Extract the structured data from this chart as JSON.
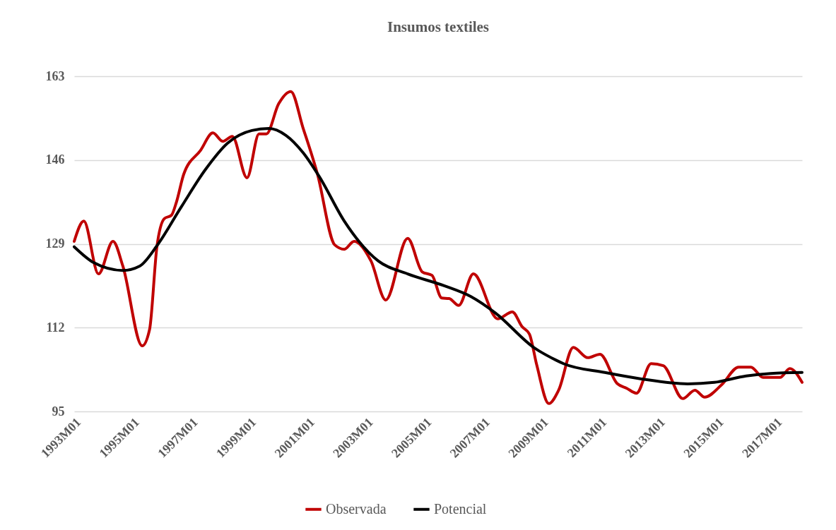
{
  "chart_data": {
    "type": "line",
    "title": "Insumos textiles",
    "legend": "bottom",
    "grid": "y",
    "marker": "none",
    "line_style": "solid",
    "xlim": [
      "1993-01",
      "2017-12"
    ],
    "ylim": [
      95,
      163
    ],
    "yticks": [
      95,
      112,
      129,
      146,
      163
    ],
    "xticks": [
      {
        "value": "1993-01",
        "label": "1993M01"
      },
      {
        "value": "1995-01",
        "label": "1995M01"
      },
      {
        "value": "1997-01",
        "label": "1997M01"
      },
      {
        "value": "1999-01",
        "label": "1999M01"
      },
      {
        "value": "2001-01",
        "label": "2001M01"
      },
      {
        "value": "2003-01",
        "label": "2003M01"
      },
      {
        "value": "2005-01",
        "label": "2005M01"
      },
      {
        "value": "2007-01",
        "label": "2007M01"
      },
      {
        "value": "2009-01",
        "label": "2009M01"
      },
      {
        "value": "2011-01",
        "label": "2011M01"
      },
      {
        "value": "2013-01",
        "label": "2013M01"
      },
      {
        "value": "2015-01",
        "label": "2015M01"
      },
      {
        "value": "2017-01",
        "label": "2017M01"
      }
    ],
    "series": [
      {
        "name": "Observada",
        "color": "#c00000",
        "x": [
          "1993-01",
          "1993-05",
          "1993-11",
          "1994-05",
          "1994-09",
          "1995-05",
          "1995-08",
          "1995-11",
          "1996-02",
          "1996-05",
          "1996-07",
          "1996-10",
          "1997-05",
          "1997-10",
          "1998-02",
          "1998-06",
          "1998-12",
          "1999-05",
          "1999-08",
          "2000-01",
          "2000-06",
          "2000-11",
          "2001-05",
          "2001-12",
          "2002-04",
          "2002-08",
          "2003-03",
          "2003-09",
          "2004-06",
          "2004-12",
          "2005-04",
          "2005-08",
          "2005-11",
          "2006-03",
          "2006-09",
          "2007-07",
          "2008-01",
          "2008-05",
          "2008-08",
          "2008-11",
          "2009-04",
          "2009-08",
          "2010-02",
          "2010-08",
          "2011-01",
          "2011-08",
          "2011-12",
          "2012-04",
          "2012-10",
          "2013-03",
          "2013-11",
          "2014-04",
          "2014-08",
          "2015-03",
          "2015-10",
          "2016-03",
          "2016-08",
          "2017-03",
          "2017-07",
          "2017-12"
        ],
        "values": [
          129.5,
          133.6,
          122.9,
          129.5,
          124.5,
          108.3,
          111.6,
          128.4,
          134.1,
          134.8,
          137.4,
          143.1,
          148.0,
          151.5,
          149.8,
          150.8,
          142.4,
          151.3,
          151.3,
          157.4,
          159.9,
          152.5,
          143.1,
          128.8,
          127.9,
          129.5,
          125.5,
          117.6,
          130.1,
          123.3,
          122.6,
          118.0,
          117.9,
          116.5,
          122.9,
          113.8,
          115.2,
          112.2,
          110.7,
          104.4,
          96.6,
          99.3,
          108.0,
          105.9,
          106.6,
          100.7,
          99.7,
          98.7,
          104.7,
          104.3,
          97.6,
          99.3,
          97.9,
          100.4,
          104.0,
          104.0,
          101.9,
          101.9,
          103.7,
          100.9
        ]
      },
      {
        "name": "Potencial",
        "color": "#000000",
        "x": [
          "1993-01",
          "1993-09",
          "1994-09",
          "1995-04",
          "1995-11",
          "1996-09",
          "1997-07",
          "1998-04",
          "1999-02",
          "1999-09",
          "2000-04",
          "2000-11",
          "2001-06",
          "2002-04",
          "2003-06",
          "2004-06",
          "2005-09",
          "2006-08",
          "2007-06",
          "2008-10",
          "2009-07",
          "2009-10",
          "2011-03",
          "2012-06",
          "2014-01",
          "2014-12",
          "2016-01",
          "2016-11",
          "2017-12"
        ],
        "values": [
          128.4,
          125.2,
          123.6,
          124.5,
          128.6,
          136.5,
          144.1,
          149.4,
          152.0,
          152.4,
          151.0,
          147.5,
          142.4,
          133.6,
          125.5,
          122.9,
          120.5,
          118.3,
          115.0,
          107.9,
          105.4,
          104.7,
          102.9,
          101.6,
          100.6,
          100.9,
          102.2,
          102.7,
          102.9
        ]
      }
    ]
  }
}
